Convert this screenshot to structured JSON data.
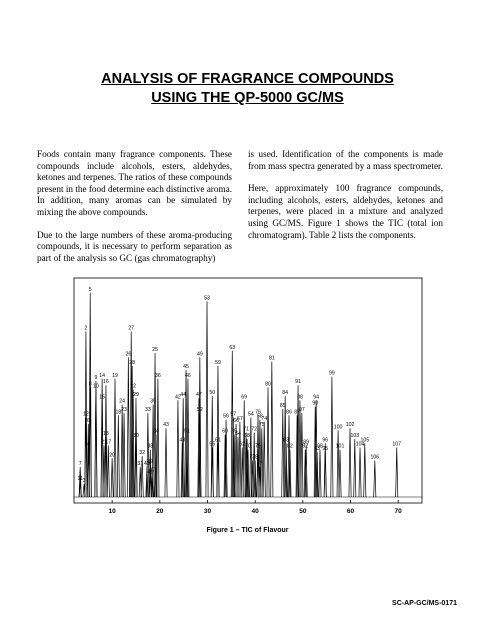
{
  "header": {
    "title_lines": [
      "ANALYSIS OF FRAGRANCE COMPOUNDS",
      "USING THE QP-5000 GC/MS"
    ]
  },
  "columns": [
    [
      "Foods contain many fragrance components. These compounds include alcohols, esters, aldehydes, ketones and terpenes. The ratios of these compounds present in the food determine each distinctive aroma. In addition, many aromas can be simulated by mixing the above compounds.",
      "Due to the large numbers of these aroma-producing compounds, it is necessary to perform separation as part of the analysis so GC (gas chromatography)"
    ],
    [
      "is used. Identification of the components is made from mass spectra generated by a mass spectrometer.",
      "Here, approximately 100 fragrance compounds, including alcohols, esters, aldehydes, ketones and terpenes, were placed in a mixture and analyzed using GC/MS. Figure 1 shows the TIC (total ion chromatogram). Table 2 lists the components."
    ]
  ],
  "figure": {
    "type": "chromatogram",
    "caption": "Figure 1 – TIC of Flavour",
    "color": "#000000",
    "xlim": [
      2,
      75
    ],
    "ylim": [
      0,
      100
    ],
    "xticks": [
      10,
      20,
      30,
      40,
      50,
      60,
      70
    ],
    "peaks": [
      {
        "label": "1",
        "time": 3.3,
        "height": 9
      },
      {
        "label": "2",
        "time": 4.5,
        "height": 77
      },
      {
        "label": "3",
        "time": 4.1,
        "height": 6
      },
      {
        "label": "4",
        "time": 5.0,
        "height": 23
      },
      {
        "label": "5",
        "time": 5.4,
        "height": 95
      },
      {
        "label": "6",
        "time": 5.0,
        "height": 34
      },
      {
        "label": "7",
        "time": 3.3,
        "height": 14
      },
      {
        "label": "8",
        "time": 5.4,
        "height": 51
      },
      {
        "label": "9",
        "time": 6.6,
        "height": 54
      },
      {
        "label": "10",
        "time": 6.6,
        "height": 50
      },
      {
        "label": "11",
        "time": 3.3,
        "height": 7
      },
      {
        "label": "12",
        "time": 4.5,
        "height": 37
      },
      {
        "label": "13",
        "time": 8.7,
        "height": 28
      },
      {
        "label": "14",
        "time": 7.9,
        "height": 55
      },
      {
        "label": "15",
        "time": 7.9,
        "height": 45
      },
      {
        "label": "16",
        "time": 8.7,
        "height": 52
      },
      {
        "label": "17",
        "time": 9.2,
        "height": 24
      },
      {
        "label": "18",
        "time": 11.3,
        "height": 38
      },
      {
        "label": "19",
        "time": 10.6,
        "height": 55
      },
      {
        "label": "20",
        "time": 10.0,
        "height": 18
      },
      {
        "label": "21",
        "time": 8.3,
        "height": 24
      },
      {
        "label": "22",
        "time": 14.4,
        "height": 50
      },
      {
        "label": "23",
        "time": 12.5,
        "height": 39
      },
      {
        "label": "24",
        "time": 12.1,
        "height": 43
      },
      {
        "label": "25",
        "time": 19.0,
        "height": 67
      },
      {
        "label": "26",
        "time": 13.4,
        "height": 65
      },
      {
        "label": "27",
        "time": 14.0,
        "height": 77
      },
      {
        "label": "28",
        "time": 14.2,
        "height": 61
      },
      {
        "label": "29",
        "time": 15.0,
        "height": 46
      },
      {
        "label": "30",
        "time": 15.0,
        "height": 27
      },
      {
        "label": "31",
        "time": 15.9,
        "height": 14
      },
      {
        "label": "32",
        "time": 16.3,
        "height": 19
      },
      {
        "label": "33",
        "time": 17.5,
        "height": 39
      },
      {
        "label": "34",
        "time": 19.2,
        "height": 29
      },
      {
        "label": "35",
        "time": 18.6,
        "height": 43
      },
      {
        "label": "36",
        "time": 19.6,
        "height": 55
      },
      {
        "label": "37",
        "time": 18.4,
        "height": 11
      },
      {
        "label": "38",
        "time": 18.0,
        "height": 22
      },
      {
        "label": "39",
        "time": 18.0,
        "height": 15
      },
      {
        "label": "40",
        "time": 17.3,
        "height": 14
      },
      {
        "label": "41",
        "time": 18.0,
        "height": 10
      },
      {
        "label": "42",
        "time": 23.8,
        "height": 45
      },
      {
        "label": "43",
        "time": 21.3,
        "height": 32
      },
      {
        "label": "44",
        "time": 24.9,
        "height": 46
      },
      {
        "label": "45",
        "time": 25.5,
        "height": 59
      },
      {
        "label": "46",
        "time": 25.9,
        "height": 55
      },
      {
        "label": "47",
        "time": 28.2,
        "height": 46
      },
      {
        "label": "48",
        "time": 24.7,
        "height": 25
      },
      {
        "label": "49",
        "time": 28.4,
        "height": 65
      },
      {
        "label": "50",
        "time": 31.0,
        "height": 47
      },
      {
        "label": "51",
        "time": 25.7,
        "height": 29
      },
      {
        "label": "52",
        "time": 28.4,
        "height": 39
      },
      {
        "label": "53",
        "time": 29.9,
        "height": 91
      },
      {
        "label": "54",
        "time": 39.1,
        "height": 37
      },
      {
        "label": "55",
        "time": 31.0,
        "height": 23
      },
      {
        "label": "56",
        "time": 33.9,
        "height": 36
      },
      {
        "label": "57",
        "time": 35.4,
        "height": 37
      },
      {
        "label": "58",
        "time": 41.0,
        "height": 36
      },
      {
        "label": "59",
        "time": 32.2,
        "height": 61
      },
      {
        "label": "60",
        "time": 33.7,
        "height": 29
      },
      {
        "label": "61",
        "time": 32.2,
        "height": 25
      },
      {
        "label": "62",
        "time": 37.3,
        "height": 23
      },
      {
        "label": "63",
        "time": 35.2,
        "height": 68
      },
      {
        "label": "64",
        "time": 36.4,
        "height": 28
      },
      {
        "label": "65",
        "time": 35.6,
        "height": 29
      },
      {
        "label": "66",
        "time": 36.0,
        "height": 34
      },
      {
        "label": "67",
        "time": 36.8,
        "height": 35
      },
      {
        "label": "68",
        "time": 38.3,
        "height": 27
      },
      {
        "label": "69",
        "time": 37.7,
        "height": 45
      },
      {
        "label": "70",
        "time": 38.5,
        "height": 22
      },
      {
        "label": "71",
        "time": 38.1,
        "height": 30
      },
      {
        "label": "72",
        "time": 39.8,
        "height": 30
      },
      {
        "label": "73",
        "time": 39.4,
        "height": 17
      },
      {
        "label": "74",
        "time": 41.9,
        "height": 35
      },
      {
        "label": "75",
        "time": 41.4,
        "height": 32
      },
      {
        "label": "76",
        "time": 40.6,
        "height": 38
      },
      {
        "label": "77",
        "time": 41.0,
        "height": 14
      },
      {
        "label": "78",
        "time": 40.0,
        "height": 17
      },
      {
        "label": "79",
        "time": 40.6,
        "height": 22
      },
      {
        "label": "80",
        "time": 42.7,
        "height": 51
      },
      {
        "label": "81",
        "time": 43.5,
        "height": 63
      },
      {
        "label": "82",
        "time": 47.3,
        "height": 22
      },
      {
        "label": "83",
        "time": 46.5,
        "height": 25
      },
      {
        "label": "84",
        "time": 46.3,
        "height": 47
      },
      {
        "label": "85",
        "time": 45.8,
        "height": 41
      },
      {
        "label": "86",
        "time": 47.1,
        "height": 38
      },
      {
        "label": "87",
        "time": 48.8,
        "height": 38
      },
      {
        "label": "88",
        "time": 49.4,
        "height": 45
      },
      {
        "label": "89",
        "time": 50.7,
        "height": 24
      },
      {
        "label": "90",
        "time": 52.6,
        "height": 42
      },
      {
        "label": "91",
        "time": 49.0,
        "height": 52
      },
      {
        "label": "92",
        "time": 50.5,
        "height": 22
      },
      {
        "label": "93",
        "time": 53.0,
        "height": 21
      },
      {
        "label": "94",
        "time": 52.8,
        "height": 45
      },
      {
        "label": "95",
        "time": 54.7,
        "height": 21
      },
      {
        "label": "96",
        "time": 54.7,
        "height": 25
      },
      {
        "label": "97",
        "time": 49.8,
        "height": 39
      },
      {
        "label": "98",
        "time": 53.6,
        "height": 22
      },
      {
        "label": "99",
        "time": 56.1,
        "height": 56
      },
      {
        "label": "100",
        "time": 57.4,
        "height": 31
      },
      {
        "label": "101",
        "time": 57.8,
        "height": 22
      },
      {
        "label": "102",
        "time": 59.9,
        "height": 32
      },
      {
        "label": "103",
        "time": 60.9,
        "height": 27
      },
      {
        "label": "104",
        "time": 62.0,
        "height": 23
      },
      {
        "label": "105",
        "time": 63.0,
        "height": 25
      },
      {
        "label": "106",
        "time": 65.1,
        "height": 17
      },
      {
        "label": "107",
        "time": 69.7,
        "height": 23
      }
    ]
  },
  "footer": {
    "code": "SC-AP-GC/MS-0171"
  }
}
